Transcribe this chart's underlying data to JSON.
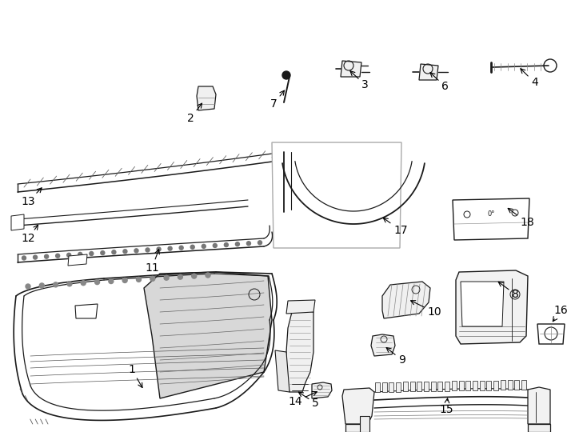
{
  "bg_color": "#ffffff",
  "lc": "#1a1a1a",
  "lw": 0.8,
  "fs": 9,
  "fig_w": 7.34,
  "fig_h": 5.4,
  "dpi": 100
}
